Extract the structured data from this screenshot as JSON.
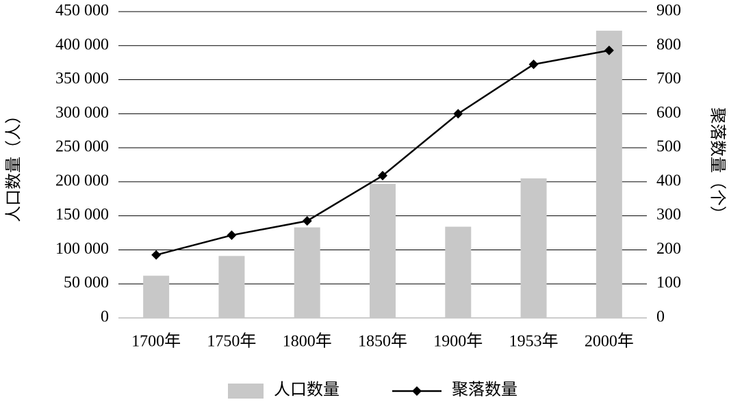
{
  "chart_data": {
    "type": "bar",
    "categories": [
      "1700年",
      "1750年",
      "1800年",
      "1850年",
      "1900年",
      "1953年",
      "2000年"
    ],
    "series": [
      {
        "name": "人口数量",
        "type": "bar",
        "color": "#c8c8c8",
        "values": [
          62000,
          91000,
          133000,
          197000,
          134000,
          205000,
          422000
        ]
      },
      {
        "name": "聚落数量",
        "type": "line",
        "axis": "y2",
        "color": "#000000",
        "values": [
          185,
          243,
          285,
          418,
          600,
          745,
          786
        ]
      }
    ],
    "ylabel": "人口数量（人）",
    "y2label": "聚落数量（个）",
    "ylim": [
      0,
      450000
    ],
    "yticks": [
      0,
      {
        "value": 50000,
        "label": "50 000"
      },
      {
        "value": 100000,
        "label": "100 000"
      },
      {
        "value": 150000,
        "label": "150 000"
      },
      {
        "value": 200000,
        "label": "200 000"
      },
      {
        "value": 250000,
        "label": "250 000"
      },
      {
        "value": 300000,
        "label": "300 000"
      },
      {
        "value": 350000,
        "label": "350 000"
      },
      {
        "value": 400000,
        "label": "400 000"
      },
      {
        "value": 450000,
        "label": "450 000"
      }
    ],
    "y2lim": [
      0,
      900
    ],
    "y2ticks": [
      0,
      100,
      200,
      300,
      400,
      500,
      600,
      700,
      800,
      900
    ],
    "grid": true,
    "legend": "bottom"
  }
}
